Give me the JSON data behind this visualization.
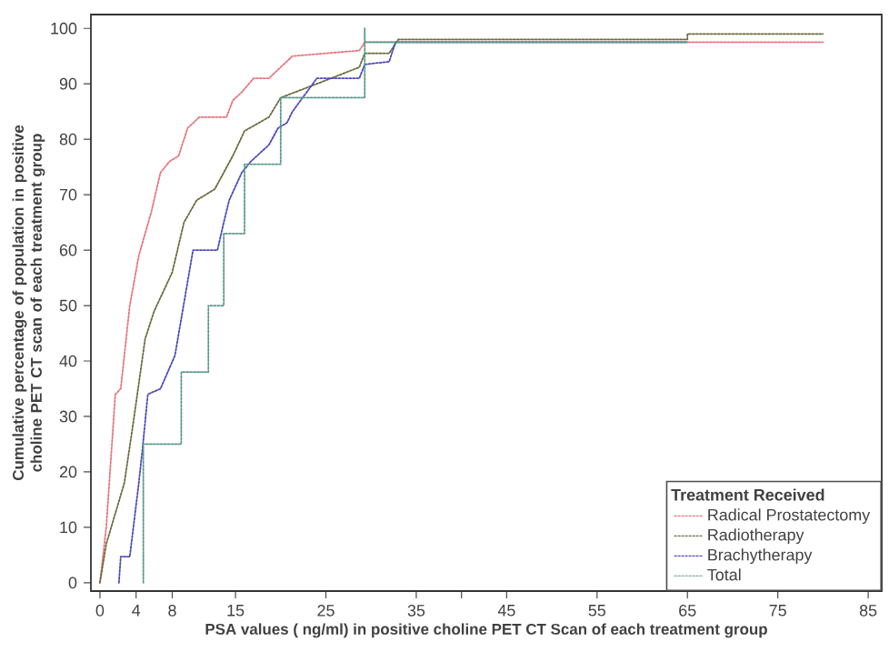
{
  "chart_data": {
    "type": "line",
    "xlabel": "PSA values ( ng/ml) in positive choline PET CT Scan of each treatment group",
    "ylabel": "Cumulative percentage of population in positive choline PET CT scan of each treatment group",
    "legend_title": "Treatment Received",
    "xlim": [
      -1,
      86.5
    ],
    "ylim": [
      -1.5,
      102.5
    ],
    "xticks": [
      0,
      4,
      8,
      15,
      25,
      35,
      {
        "value": 40,
        "label": null
      },
      45,
      55,
      65,
      75,
      85
    ],
    "yticks": [
      0,
      10,
      20,
      30,
      40,
      50,
      60,
      70,
      80,
      90,
      100
    ],
    "legend": "bottom right",
    "grid": false,
    "marker": "none",
    "line_style": "dotted",
    "series": [
      {
        "name": "Radical Prostatectomy",
        "color": "#e8747c",
        "x": [
          0,
          0.7,
          1.7,
          2.3,
          3.3,
          4.3,
          5.7,
          6.7,
          7.7,
          8.7,
          9.7,
          11,
          14,
          14.7,
          15.7,
          17,
          18.7,
          21.3,
          28.7,
          29.3,
          80
        ],
        "values": [
          0,
          10,
          34,
          35,
          50,
          59,
          67,
          74,
          76,
          77,
          82,
          84,
          84,
          87,
          88.5,
          91,
          91,
          95,
          96,
          97.5,
          97.5
        ]
      },
      {
        "name": "Radiotherapy",
        "color": "#6b6b3a",
        "x": [
          0,
          0.7,
          2.7,
          3.7,
          5,
          6,
          8,
          9.3,
          10.7,
          12.7,
          14.7,
          16,
          18.7,
          20,
          24,
          28.7,
          29.3,
          32,
          33,
          65,
          65,
          80
        ],
        "values": [
          0,
          7,
          18,
          29,
          44,
          49,
          56,
          65,
          69,
          71,
          77,
          81.5,
          84,
          87.5,
          90,
          93,
          95.5,
          95.5,
          98,
          98,
          99,
          99
        ]
      },
      {
        "name": "Brachytherapy",
        "color": "#4a4ab8",
        "x": [
          2.1,
          2.3,
          3.3,
          3.7,
          4.3,
          4.7,
          5.3,
          6.7,
          8.3,
          10.3,
          13,
          13.7,
          14.3,
          15.7,
          16.7,
          18.7,
          19.7,
          20.7,
          21.3,
          24,
          28.7,
          29.3,
          32,
          32.7,
          65
        ],
        "values": [
          0,
          4.7,
          4.7,
          10,
          18,
          24,
          34,
          35,
          41,
          60,
          60,
          65,
          69,
          74,
          76,
          79,
          82,
          83,
          85,
          91,
          91,
          93.5,
          94,
          97.5,
          97.5
        ]
      },
      {
        "name": "Total",
        "color": "#5a9a8a",
        "x": [
          4.8,
          4.8,
          9,
          9,
          12,
          12,
          13.7,
          13.7,
          16,
          16,
          20,
          20,
          29.3,
          29.3,
          29.3,
          65
        ],
        "values": [
          0,
          25,
          25,
          38,
          38,
          50,
          50,
          63,
          63,
          75.5,
          75.5,
          87.5,
          87.5,
          100,
          97.5,
          97.5
        ]
      }
    ]
  }
}
